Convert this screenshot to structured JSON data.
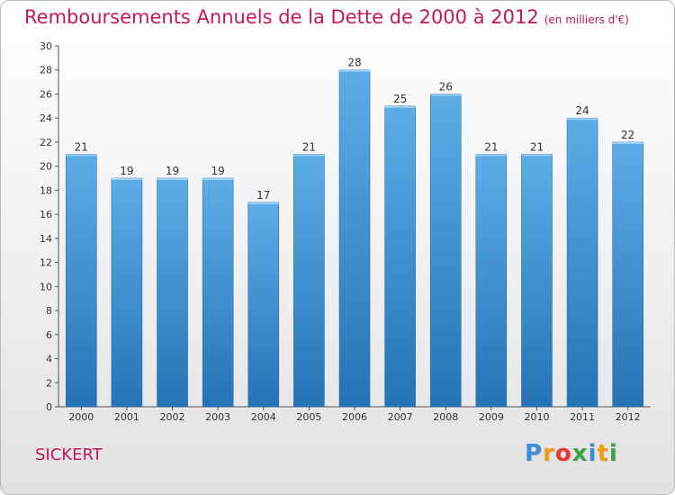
{
  "header": {
    "title": "Remboursements Annuels de la Dette de 2000 à 2012",
    "unit": "(en milliers d'€)"
  },
  "location": "SICKERT",
  "logo": {
    "letters": [
      "P",
      "r",
      "o",
      "x",
      "i",
      "t",
      "i"
    ],
    "colors": [
      "#3b8fd8",
      "#f39c12",
      "#e53935",
      "#43a047",
      "#3b8fd8",
      "#f39c12",
      "#43a047"
    ]
  },
  "colors": {
    "bar_top": "#5dade8",
    "bar_bottom": "#2573b5",
    "title": "#c2185b"
  },
  "chart_data": {
    "type": "bar",
    "title": "Remboursements Annuels de la Dette de 2000 à 2012",
    "categories": [
      "2000",
      "2001",
      "2002",
      "2003",
      "2004",
      "2005",
      "2006",
      "2007",
      "2008",
      "2009",
      "2010",
      "2011",
      "2012"
    ],
    "values": [
      21,
      19,
      19,
      19,
      17,
      21,
      28,
      25,
      26,
      21,
      21,
      24,
      22
    ],
    "ylim": [
      0,
      30
    ],
    "yticks": [
      0,
      2,
      4,
      6,
      8,
      10,
      12,
      14,
      16,
      18,
      20,
      22,
      24,
      26,
      28,
      30
    ],
    "grid": false,
    "data_labels": true
  }
}
